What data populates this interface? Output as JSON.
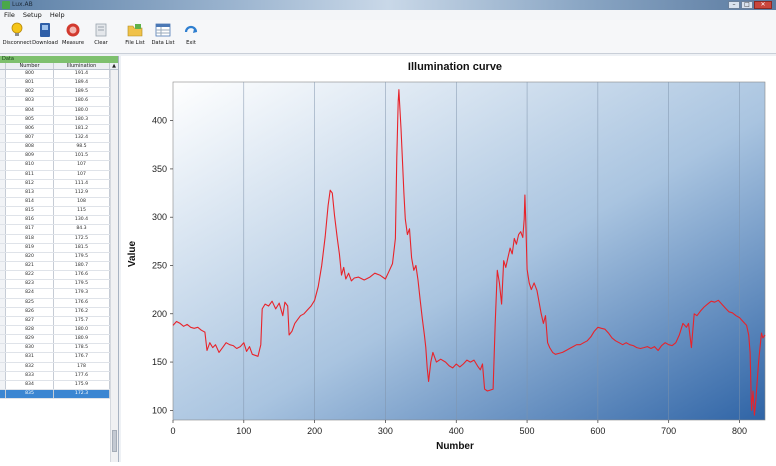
{
  "window": {
    "title": "Lux.AB",
    "controls": [
      "–",
      "□",
      "✕"
    ]
  },
  "menu": [
    "File",
    "Setup",
    "Help"
  ],
  "toolbar": [
    {
      "label": "Disconnect",
      "icon": "lightbulb-icon"
    },
    {
      "label": "Download",
      "icon": "download-icon"
    },
    {
      "label": "Measure",
      "icon": "measure-icon"
    },
    {
      "label": "Clear",
      "icon": "clear-icon"
    },
    {
      "label": "File List",
      "icon": "file-list-icon"
    },
    {
      "label": "Data List",
      "icon": "data-list-icon"
    },
    {
      "label": "Exit",
      "icon": "exit-icon"
    }
  ],
  "data_panel": {
    "header": "Data",
    "columns": [
      "Number",
      "Illumination"
    ],
    "rows": [
      [
        "800",
        "191.4"
      ],
      [
        "801",
        "189.4"
      ],
      [
        "802",
        "189.5"
      ],
      [
        "803",
        "180.6"
      ],
      [
        "804",
        "180.0"
      ],
      [
        "805",
        "180.3"
      ],
      [
        "806",
        "181.2"
      ],
      [
        "807",
        "132.4"
      ],
      [
        "808",
        "98.5"
      ],
      [
        "809",
        "101.5"
      ],
      [
        "810",
        "107"
      ],
      [
        "811",
        "107"
      ],
      [
        "812",
        "111.4"
      ],
      [
        "813",
        "112.9"
      ],
      [
        "814",
        "108"
      ],
      [
        "815",
        "115"
      ],
      [
        "816",
        "130.4"
      ],
      [
        "817",
        "84.3"
      ],
      [
        "818",
        "172.5"
      ],
      [
        "819",
        "181.5"
      ],
      [
        "820",
        "179.5"
      ],
      [
        "821",
        "180.7"
      ],
      [
        "822",
        "176.6"
      ],
      [
        "823",
        "179.5"
      ],
      [
        "824",
        "179.3"
      ],
      [
        "825",
        "176.6"
      ],
      [
        "826",
        "176.2"
      ],
      [
        "827",
        "175.7"
      ],
      [
        "828",
        "180.0"
      ],
      [
        "829",
        "180.9"
      ],
      [
        "830",
        "178.5"
      ],
      [
        "831",
        "176.7"
      ],
      [
        "832",
        "178"
      ],
      [
        "833",
        "177.6"
      ],
      [
        "834",
        "175.9"
      ],
      [
        "835",
        "172.3"
      ]
    ],
    "selected_row": 35
  },
  "chart_data": {
    "type": "line",
    "title": "Illumination curve",
    "xlabel": "Number",
    "ylabel": "Value",
    "xlim": [
      0,
      836
    ],
    "ylim": [
      90,
      440
    ],
    "xticks": [
      0,
      100,
      200,
      300,
      400,
      500,
      600,
      700,
      800
    ],
    "yticks": [
      100,
      150,
      200,
      250,
      300,
      350,
      400
    ],
    "grid": "vertical",
    "series": [
      {
        "color": "#e8232a",
        "points": [
          [
            0,
            188
          ],
          [
            5,
            192
          ],
          [
            10,
            190
          ],
          [
            15,
            187
          ],
          [
            20,
            189
          ],
          [
            25,
            186
          ],
          [
            30,
            185
          ],
          [
            35,
            186
          ],
          [
            40,
            183
          ],
          [
            45,
            181
          ],
          [
            48,
            162
          ],
          [
            52,
            170
          ],
          [
            56,
            165
          ],
          [
            60,
            168
          ],
          [
            65,
            160
          ],
          [
            70,
            165
          ],
          [
            75,
            170
          ],
          [
            80,
            168
          ],
          [
            85,
            167
          ],
          [
            90,
            164
          ],
          [
            95,
            166
          ],
          [
            100,
            170
          ],
          [
            104,
            161
          ],
          [
            108,
            166
          ],
          [
            112,
            158
          ],
          [
            116,
            157
          ],
          [
            120,
            156
          ],
          [
            124,
            168
          ],
          [
            126,
            205
          ],
          [
            130,
            210
          ],
          [
            135,
            208
          ],
          [
            140,
            213
          ],
          [
            145,
            205
          ],
          [
            150,
            211
          ],
          [
            155,
            198
          ],
          [
            158,
            212
          ],
          [
            162,
            208
          ],
          [
            164,
            178
          ],
          [
            168,
            182
          ],
          [
            172,
            190
          ],
          [
            176,
            194
          ],
          [
            180,
            198
          ],
          [
            185,
            200
          ],
          [
            190,
            204
          ],
          [
            195,
            208
          ],
          [
            200,
            214
          ],
          [
            205,
            228
          ],
          [
            210,
            250
          ],
          [
            215,
            280
          ],
          [
            219,
            312
          ],
          [
            222,
            328
          ],
          [
            225,
            325
          ],
          [
            228,
            302
          ],
          [
            232,
            278
          ],
          [
            235,
            262
          ],
          [
            238,
            240
          ],
          [
            241,
            248
          ],
          [
            244,
            236
          ],
          [
            248,
            242
          ],
          [
            252,
            234
          ],
          [
            256,
            237
          ],
          [
            262,
            238
          ],
          [
            270,
            235
          ],
          [
            278,
            238
          ],
          [
            285,
            242
          ],
          [
            292,
            240
          ],
          [
            300,
            236
          ],
          [
            305,
            244
          ],
          [
            310,
            252
          ],
          [
            314,
            278
          ],
          [
            316,
            362
          ],
          [
            318,
            420
          ],
          [
            319,
            432
          ],
          [
            320,
            418
          ],
          [
            322,
            392
          ],
          [
            324,
            360
          ],
          [
            326,
            325
          ],
          [
            328,
            298
          ],
          [
            331,
            282
          ],
          [
            334,
            288
          ],
          [
            337,
            258
          ],
          [
            340,
            245
          ],
          [
            343,
            250
          ],
          [
            346,
            235
          ],
          [
            349,
            215
          ],
          [
            352,
            195
          ],
          [
            355,
            178
          ],
          [
            357,
            165
          ],
          [
            359,
            144
          ],
          [
            361,
            130
          ],
          [
            364,
            150
          ],
          [
            367,
            160
          ],
          [
            372,
            150
          ],
          [
            378,
            153
          ],
          [
            385,
            150
          ],
          [
            390,
            146
          ],
          [
            395,
            144
          ],
          [
            400,
            148
          ],
          [
            405,
            145
          ],
          [
            410,
            148
          ],
          [
            415,
            152
          ],
          [
            420,
            150
          ],
          [
            425,
            152
          ],
          [
            430,
            146
          ],
          [
            434,
            142
          ],
          [
            437,
            148
          ],
          [
            440,
            122
          ],
          [
            444,
            120
          ],
          [
            448,
            121
          ],
          [
            452,
            122
          ],
          [
            455,
            190
          ],
          [
            458,
            245
          ],
          [
            461,
            232
          ],
          [
            464,
            210
          ],
          [
            467,
            255
          ],
          [
            470,
            248
          ],
          [
            473,
            258
          ],
          [
            476,
            268
          ],
          [
            479,
            262
          ],
          [
            482,
            278
          ],
          [
            485,
            272
          ],
          [
            488,
            282
          ],
          [
            491,
            285
          ],
          [
            494,
            279
          ],
          [
            496,
            298
          ],
          [
            497,
            323
          ],
          [
            498,
            298
          ],
          [
            500,
            246
          ],
          [
            503,
            232
          ],
          [
            506,
            225
          ],
          [
            510,
            232
          ],
          [
            514,
            224
          ],
          [
            517,
            212
          ],
          [
            520,
            200
          ],
          [
            523,
            190
          ],
          [
            526,
            198
          ],
          [
            529,
            170
          ],
          [
            532,
            165
          ],
          [
            536,
            160
          ],
          [
            540,
            158
          ],
          [
            545,
            159
          ],
          [
            550,
            160
          ],
          [
            555,
            162
          ],
          [
            560,
            164
          ],
          [
            565,
            166
          ],
          [
            570,
            168
          ],
          [
            575,
            168
          ],
          [
            580,
            170
          ],
          [
            585,
            172
          ],
          [
            590,
            176
          ],
          [
            595,
            182
          ],
          [
            600,
            186
          ],
          [
            605,
            185
          ],
          [
            610,
            184
          ],
          [
            615,
            180
          ],
          [
            620,
            175
          ],
          [
            625,
            172
          ],
          [
            630,
            170
          ],
          [
            635,
            168
          ],
          [
            640,
            170
          ],
          [
            645,
            168
          ],
          [
            650,
            167
          ],
          [
            655,
            165
          ],
          [
            660,
            164
          ],
          [
            665,
            165
          ],
          [
            670,
            166
          ],
          [
            675,
            164
          ],
          [
            680,
            166
          ],
          [
            685,
            162
          ],
          [
            690,
            167
          ],
          [
            695,
            170
          ],
          [
            700,
            168
          ],
          [
            705,
            167
          ],
          [
            710,
            170
          ],
          [
            715,
            178
          ],
          [
            720,
            190
          ],
          [
            725,
            186
          ],
          [
            728,
            190
          ],
          [
            732,
            165
          ],
          [
            736,
            200
          ],
          [
            740,
            198
          ],
          [
            745,
            203
          ],
          [
            750,
            207
          ],
          [
            755,
            210
          ],
          [
            760,
            213
          ],
          [
            765,
            212
          ],
          [
            770,
            214
          ],
          [
            775,
            210
          ],
          [
            780,
            206
          ],
          [
            785,
            202
          ],
          [
            790,
            201
          ],
          [
            795,
            198
          ],
          [
            800,
            196
          ],
          [
            805,
            192
          ],
          [
            810,
            188
          ],
          [
            813,
            178
          ],
          [
            815,
            160
          ],
          [
            817,
            100
          ],
          [
            819,
            120
          ],
          [
            821,
            95
          ],
          [
            823,
            110
          ],
          [
            825,
            130
          ],
          [
            827,
            150
          ],
          [
            829,
            165
          ],
          [
            831,
            180
          ],
          [
            833,
            175
          ],
          [
            836,
            178
          ]
        ]
      }
    ]
  }
}
